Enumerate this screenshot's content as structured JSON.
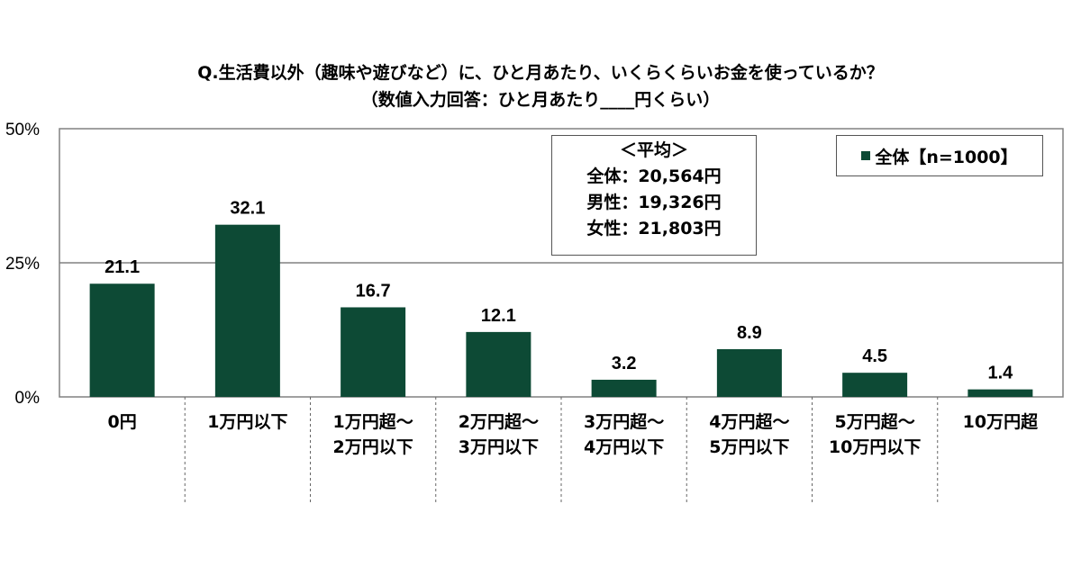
{
  "title_line1": "Q.生活費以外（趣味や遊びなど）に、ひと月あたり、いくらくらいお金を使っているか？",
  "title_line2": "（数値入力回答：ひと月あたり____円くらい）",
  "average_box": {
    "heading": "＜平均＞",
    "rows": [
      "全体：20,564円",
      "男性：19,326円",
      "女性：21,803円"
    ]
  },
  "legend_label": "全体【n=1000】",
  "colors": {
    "bar": "#0d4a35",
    "grid": "#808080",
    "axis": "#808080"
  },
  "chart_data": {
    "type": "bar",
    "categories": [
      "0円",
      "1万円以下",
      "1万円超～2万円以下",
      "2万円超～3万円以下",
      "3万円超～4万円以下",
      "4万円超～5万円以下",
      "5万円超～10万円以下",
      "10万円超"
    ],
    "category_lines": [
      [
        "0円"
      ],
      [
        "1万円以下"
      ],
      [
        "1万円超～",
        "2万円以下"
      ],
      [
        "2万円超～",
        "3万円以下"
      ],
      [
        "3万円超～",
        "4万円以下"
      ],
      [
        "4万円超～",
        "5万円以下"
      ],
      [
        "5万円超～",
        "10万円以下"
      ],
      [
        "10万円超"
      ]
    ],
    "series": [
      {
        "name": "全体【n=1000】",
        "values": [
          21.1,
          32.1,
          16.7,
          12.1,
          3.2,
          8.9,
          4.5,
          1.4
        ]
      }
    ],
    "data_labels": [
      "21.1",
      "32.1",
      "16.7",
      "12.1",
      "3.2",
      "8.9",
      "4.5",
      "1.4"
    ],
    "y_ticks": [
      0,
      25,
      50
    ],
    "y_tick_labels": [
      "0%",
      "25%",
      "50%"
    ],
    "ylim": [
      0,
      50
    ],
    "grid": true,
    "legend_position": "top-right"
  }
}
